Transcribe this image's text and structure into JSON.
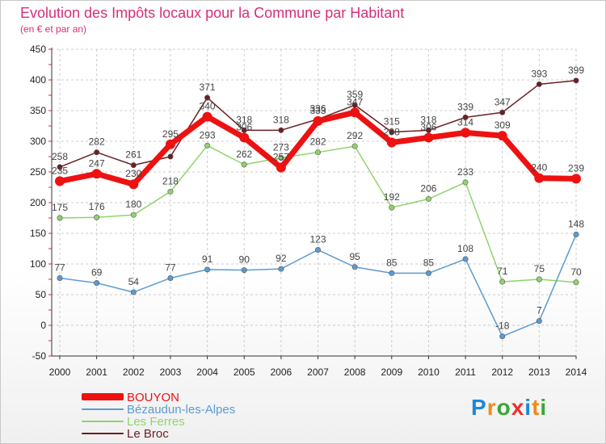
{
  "header": {
    "title": "Evolution des Impôts locaux pour la Commune par Habitant",
    "subtitle": "(en € et par an)"
  },
  "brand": {
    "letters": [
      "P",
      "r",
      "o",
      "x",
      "i",
      "t",
      "i"
    ],
    "colors": [
      "#1e88d8",
      "#f08a1c",
      "#3aa635",
      "#e8322f",
      "#1e88d8",
      "#f08a1c",
      "#3aa635"
    ]
  },
  "chart_data": {
    "type": "line",
    "x": [
      "2000",
      "2001",
      "2002",
      "2003",
      "2004",
      "2005",
      "2006",
      "2007",
      "2008",
      "2009",
      "2010",
      "2011",
      "2012",
      "2013",
      "2014"
    ],
    "ylim": [
      -50,
      450
    ],
    "yticks": [
      "-50",
      "0",
      "50",
      "100",
      "150",
      "200",
      "250",
      "300",
      "350",
      "400",
      "450"
    ],
    "grid": true,
    "legend_position": "bottom-left",
    "series": [
      {
        "name": "Le Broc",
        "color": "#6b1e24",
        "width": 1.5,
        "values": [
          258,
          282,
          261,
          275,
          371,
          318,
          318,
          336,
          359,
          315,
          318,
          339,
          347,
          393,
          399
        ],
        "labels": [
          "258",
          "282",
          "261",
          "",
          "371",
          "318",
          "318",
          "336",
          "359",
          "315",
          "318",
          "339",
          "347",
          "393",
          "399"
        ]
      },
      {
        "name": "Les Ferres",
        "color": "#8fd46a",
        "width": 1.5,
        "values": [
          175,
          176,
          180,
          218,
          293,
          262,
          273,
          282,
          292,
          192,
          206,
          233,
          71,
          75,
          70
        ],
        "labels": [
          "175",
          "176",
          "180",
          "218",
          "293",
          "262",
          "273",
          "282",
          "292",
          "192",
          "206",
          "233",
          "71",
          "75",
          "70"
        ]
      },
      {
        "name": "Bézaudun-les-Alpes",
        "color": "#5b9bd0",
        "width": 1.5,
        "values": [
          77,
          69,
          54,
          77,
          91,
          90,
          92,
          123,
          95,
          85,
          85,
          108,
          -18,
          7,
          148
        ],
        "labels": [
          "77",
          "69",
          "54",
          "77",
          "91",
          "90",
          "92",
          "123",
          "95",
          "85",
          "85",
          "108",
          "-18",
          "7",
          "148"
        ]
      },
      {
        "name": "BOUYON",
        "color": "#ee1111",
        "width": 7,
        "values": [
          235,
          247,
          230,
          295,
          340,
          306,
          257,
          333,
          347,
          298,
          306,
          314,
          309,
          240,
          239
        ],
        "labels": [
          "235",
          "247",
          "230",
          "295",
          "340",
          "306",
          "257",
          "333",
          "347",
          "298",
          "306",
          "314",
          "309",
          "240",
          "239"
        ]
      }
    ]
  }
}
